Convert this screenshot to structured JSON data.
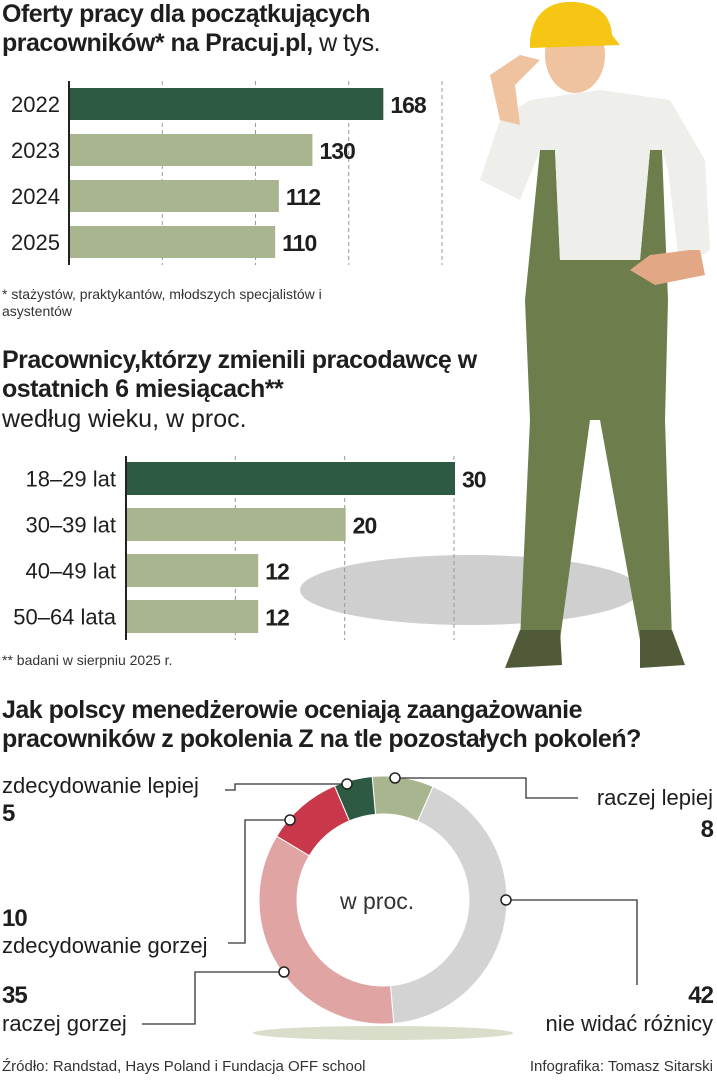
{
  "chart_data": [
    {
      "type": "bar",
      "title_bold": "Oferty pracy dla początkujących pracowników* na Pracuj.pl,",
      "title_unit": " w tys.",
      "categories": [
        "2022",
        "2023",
        "2024",
        "2025"
      ],
      "values": [
        168,
        130,
        112,
        110
      ],
      "value_labels": [
        "168",
        "130",
        "112",
        "110"
      ],
      "xlim": [
        0,
        200
      ],
      "grid_ticks": [
        50,
        100,
        150,
        200
      ],
      "grid": true,
      "orientation": "horizontal",
      "highlight_color": "#2e5a44",
      "bar_color": "#a8b58e",
      "footnote": "* stażystów, praktykantów, młodszych specjalistów i asystentów"
    },
    {
      "type": "bar",
      "title_bold": "Pracownicy,którzy zmienili pracodawcę w ostatnich 6 miesiącach**",
      "subtitle": "według wieku, w proc.",
      "categories": [
        "18–29 lat",
        "30–39 lat",
        "40–49 lat",
        "50–64 lata"
      ],
      "values": [
        30,
        20,
        12,
        12
      ],
      "value_labels": [
        "30",
        "20",
        "12",
        "12"
      ],
      "xlim": [
        0,
        30
      ],
      "grid_ticks": [
        10,
        20,
        30
      ],
      "grid": true,
      "orientation": "horizontal",
      "highlight_color": "#2e5a44",
      "bar_color": "#a8b58e",
      "footnote": "** badani w sierpniu 2025 r."
    },
    {
      "type": "pie",
      "donut": true,
      "title": "Jak polscy menedżerowie oceniają zaangażowanie pracowników z pokolenia Z na tle pozostałych pokoleń?",
      "center_label": "w proc.",
      "slices": [
        {
          "label": "raczej lepiej",
          "value": 8,
          "value_label": "8",
          "color": "#a8b58e"
        },
        {
          "label": "nie widać różnicy",
          "value": 42,
          "value_label": "42",
          "color": "#d3d3d3"
        },
        {
          "label": "raczej gorzej",
          "value": 35,
          "value_label": "35",
          "color": "#e0a5a2"
        },
        {
          "label": "zdecydowanie gorzej",
          "value": 10,
          "value_label": "10",
          "color": "#c8384a"
        },
        {
          "label": "zdecydowanie lepiej",
          "value": 5,
          "value_label": "5",
          "color": "#2e5a44"
        }
      ]
    }
  ],
  "footer": {
    "source": "Źródło: Randstad, Hays Poland i Fundacja OFF school",
    "credit": "Infografika: Tomasz Sitarski"
  }
}
